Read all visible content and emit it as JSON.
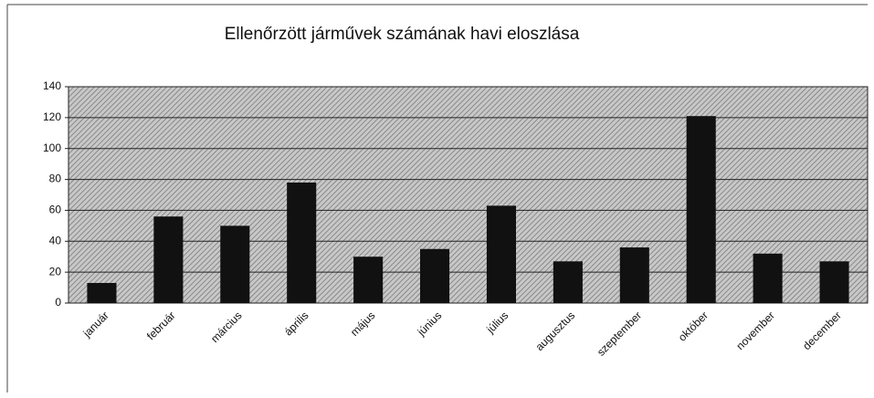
{
  "chart_data": {
    "type": "bar",
    "title": "Ellenőrzött járművek számának havi eloszlása",
    "categories": [
      "január",
      "február",
      "március",
      "április",
      "május",
      "június",
      "július",
      "augusztus",
      "szeptember",
      "október",
      "november",
      "december"
    ],
    "values": [
      13,
      56,
      50,
      78,
      30,
      35,
      63,
      27,
      36,
      121,
      32,
      27
    ],
    "color": "#111111",
    "ylim": [
      0,
      140
    ],
    "yticks": [
      0,
      20,
      40,
      60,
      80,
      100,
      120,
      140
    ],
    "grid": true
  }
}
